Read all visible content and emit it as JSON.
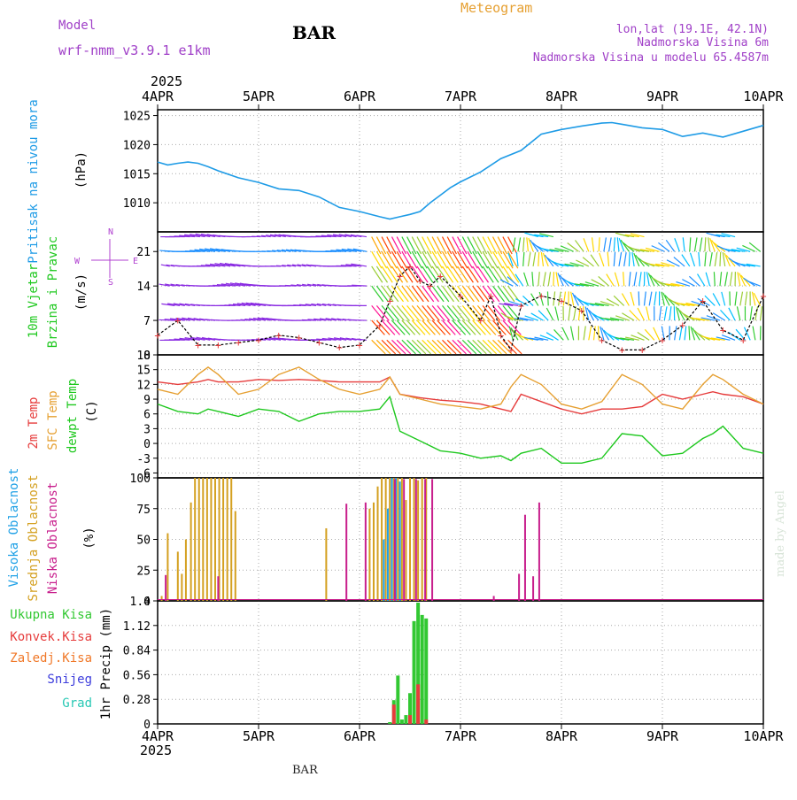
{
  "header": {
    "model_label": "Model",
    "model_name": "wrf-nmm_v3.9.1  e1km",
    "title": "BAR",
    "meteogram_label": "Meteogram",
    "lonlat": "lon,lat (19.1E, 42.1N)",
    "elevation": "Nadmorska Visina 6m",
    "model_elevation": "Nadmorska Visina u modelu 65.4587m",
    "year": "2025",
    "footer_title": "BAR",
    "credit": "made by Angel"
  },
  "colors": {
    "pressure": "#1e9be6",
    "temp2m": "#e63c3c",
    "sfc_temp": "#e6a032",
    "dewpoint": "#1ec81e",
    "high_cloud": "#1ea0e6",
    "mid_cloud": "#d4a020",
    "low_cloud": "#c81e8c",
    "total_precip": "#32c832",
    "conv_precip": "#e63c3c",
    "frozen_precip": "#f07828",
    "snow": "#3c3cdc",
    "hail": "#28c8b4",
    "model_text": "#a040c8",
    "meteogram_text": "#e6a032"
  },
  "x_axis": {
    "ticks": [
      "4APR",
      "5APR",
      "6APR",
      "7APR",
      "8APR",
      "9APR",
      "10APR"
    ],
    "top_year": "2025",
    "bottom_year": "2025"
  },
  "chart_data": [
    {
      "type": "line",
      "panel": "pressure",
      "ylabel_title": "Pritisak na nivou mora",
      "ylabel_unit": "(hPa)",
      "ylim": [
        1005,
        1026
      ],
      "yticks": [
        "1010",
        "1015",
        "1020",
        "1025"
      ],
      "grid": true,
      "x_days": [
        0,
        0.1,
        0.2,
        0.3,
        0.4,
        0.5,
        0.6,
        0.8,
        1.0,
        1.2,
        1.4,
        1.6,
        1.8,
        2.0,
        2.2,
        2.3,
        2.4,
        2.5,
        2.6,
        2.7,
        2.8,
        2.9,
        3.0,
        3.2,
        3.4,
        3.6,
        3.8,
        4.0,
        4.2,
        4.4,
        4.5,
        4.6,
        4.8,
        5.0,
        5.2,
        5.4,
        5.6,
        5.8,
        6.0
      ],
      "series": [
        {
          "values": [
            1017,
            1016.5,
            1016.8,
            1017,
            1016.8,
            1016.2,
            1015.5,
            1014.3,
            1013.5,
            1012.4,
            1012.1,
            1011.0,
            1009.2,
            1008.5,
            1007.6,
            1007.2,
            1007.6,
            1008.0,
            1008.5,
            1010.0,
            1011.3,
            1012.6,
            1013.6,
            1015.3,
            1017.6,
            1019.0,
            1021.8,
            1022.6,
            1023.2,
            1023.7,
            1023.8,
            1023.5,
            1022.9,
            1022.6,
            1021.4,
            1022.0,
            1021.3,
            1022.3,
            1023.3
          ]
        }
      ]
    },
    {
      "type": "line",
      "panel": "wind",
      "ylabel_title_1": "10m Vjetar",
      "ylabel_title_2": "Brzina i Pravac",
      "ylabel_unit": "(m/s)",
      "compass": {
        "n": "N",
        "s": "S",
        "e": "E",
        "w": "W"
      },
      "ylim": [
        0,
        25
      ],
      "yticks": [
        "0",
        "7",
        "14",
        "21"
      ],
      "grid": true,
      "x_days": [
        0,
        0.2,
        0.4,
        0.6,
        0.8,
        1.0,
        1.2,
        1.4,
        1.6,
        1.8,
        2.0,
        2.2,
        2.3,
        2.4,
        2.5,
        2.6,
        2.7,
        2.8,
        3.0,
        3.2,
        3.3,
        3.4,
        3.5,
        3.6,
        3.8,
        4.0,
        4.2,
        4.4,
        4.6,
        4.8,
        5.0,
        5.2,
        5.4,
        5.6,
        5.8,
        6.0
      ],
      "series": [
        {
          "name": "speed",
          "values": [
            4,
            7,
            2,
            2,
            2.5,
            3,
            4,
            3.5,
            2.5,
            1.5,
            2,
            6,
            11,
            16,
            18,
            15,
            14,
            16,
            12,
            7,
            12,
            4,
            1,
            10,
            12,
            11,
            9,
            3,
            1,
            1,
            3,
            6,
            11,
            5,
            3,
            12
          ]
        }
      ],
      "barb_rows_ms": [
        3,
        7,
        10,
        14,
        18,
        21,
        24
      ],
      "barb_color_scale": [
        "#8a2be2",
        "#1e90ff",
        "#00bfff",
        "#32cd32",
        "#9acd32",
        "#ffd700",
        "#ffa500",
        "#ff4500",
        "#ff1493"
      ]
    },
    {
      "type": "line",
      "panel": "temperature",
      "ylabel_2m": "2m Temp",
      "ylabel_sfc": "SFC Temp",
      "ylabel_dew": "dewpt Temp",
      "ylabel_unit": "(C)",
      "ylim": [
        -7,
        18
      ],
      "yticks": [
        "-6",
        "-3",
        "0",
        "3",
        "6",
        "9",
        "12",
        "15",
        "18"
      ],
      "grid": true,
      "x_days": [
        0,
        0.2,
        0.4,
        0.5,
        0.6,
        0.8,
        1.0,
        1.2,
        1.4,
        1.6,
        1.8,
        2.0,
        2.2,
        2.3,
        2.4,
        2.6,
        2.8,
        3.0,
        3.2,
        3.4,
        3.5,
        3.6,
        3.8,
        4.0,
        4.2,
        4.4,
        4.6,
        4.8,
        5.0,
        5.2,
        5.4,
        5.5,
        5.6,
        5.8,
        6.0
      ],
      "series": [
        {
          "name": "2m Temp",
          "values": [
            12.5,
            12,
            12.5,
            13,
            12.5,
            12.5,
            13,
            12.8,
            13,
            12.8,
            12.5,
            12.5,
            12.5,
            13.5,
            10,
            9.3,
            8.8,
            8.5,
            8,
            7,
            6.5,
            10,
            8.5,
            7,
            6,
            7,
            7,
            7.5,
            10,
            9,
            10,
            10.5,
            10,
            9.5,
            8
          ]
        },
        {
          "name": "SFC Temp",
          "values": [
            11,
            10,
            14,
            15.5,
            14,
            10,
            11,
            14,
            15.5,
            13,
            11,
            10,
            11,
            13.5,
            10,
            9,
            8,
            7.5,
            7,
            8,
            11.5,
            14,
            12,
            8,
            7,
            8.5,
            14,
            12,
            8,
            7,
            12,
            14,
            13,
            10,
            8
          ]
        },
        {
          "name": "dewpt Temp",
          "values": [
            8,
            6.5,
            6,
            7,
            6.5,
            5.5,
            7,
            6.5,
            4.5,
            6,
            6.5,
            6.5,
            7,
            9.5,
            2.5,
            0.5,
            -1.5,
            -2,
            -3,
            -2.5,
            -3.5,
            -2,
            -1,
            -4,
            -4,
            -3,
            2,
            1.5,
            -2.5,
            -2,
            1,
            2,
            3.5,
            -1,
            -2
          ]
        }
      ]
    },
    {
      "type": "bar",
      "panel": "clouds",
      "ylabel_high": "Visoka Oblacnost",
      "ylabel_mid": "Srednja Oblacnost",
      "ylabel_low": "Niska Oblacnost",
      "ylabel_unit": "(%)",
      "ylim": [
        0,
        100
      ],
      "yticks": [
        "0",
        "25",
        "50",
        "75",
        "100"
      ],
      "grid": true,
      "series": [
        {
          "name": "Srednja Oblacnost",
          "x_days": [
            0.04,
            0.1,
            0.2,
            0.24,
            0.28,
            0.33,
            0.37,
            0.41,
            0.45,
            0.49,
            0.53,
            0.57,
            0.61,
            0.65,
            0.69,
            0.73,
            0.77,
            0.81,
            1.67,
            2.1,
            2.14,
            2.18,
            2.22,
            2.26,
            2.3,
            2.34,
            2.38,
            2.42,
            2.46,
            2.5,
            2.54,
            2.58,
            2.62,
            2.66
          ],
          "values": [
            4,
            55,
            40,
            22,
            50,
            80,
            100,
            100,
            100,
            100,
            100,
            100,
            100,
            100,
            100,
            100,
            73,
            0,
            59,
            75,
            80,
            93,
            100,
            100,
            100,
            100,
            100,
            100,
            82,
            100,
            100,
            98,
            100,
            100
          ]
        },
        {
          "name": "Visoka Oblacnost",
          "x_days": [
            2.24,
            2.28,
            2.32,
            2.36,
            2.4
          ],
          "values": [
            50,
            75,
            100,
            100,
            97
          ]
        },
        {
          "name": "Niska Oblacnost",
          "x_days": [
            0.08,
            0.6,
            1.87,
            2.06,
            2.35,
            2.44,
            2.56,
            2.65,
            2.72,
            3.33,
            3.58,
            3.64,
            3.72,
            3.78
          ],
          "values": [
            21,
            20,
            79,
            80,
            99,
            99,
            99,
            99,
            99,
            4,
            22,
            70,
            20,
            80
          ]
        }
      ]
    },
    {
      "type": "bar",
      "panel": "precip",
      "ylabel_total": "Ukupna Kisa",
      "ylabel_conv": "Konvek.Kisa",
      "ylabel_frozen": "Zaledj.Kisa",
      "ylabel_snow": "Snijeg",
      "ylabel_hail": "Grad",
      "ylabel_unit": "1hr Precip (mm)",
      "ylim": [
        0,
        1.4
      ],
      "yticks": [
        "0",
        "0.28",
        "0.56",
        "0.84",
        "1.12",
        "1.4"
      ],
      "grid": true,
      "series": [
        {
          "name": "Ukupna Kisa",
          "x_days": [
            2.3,
            2.34,
            2.38,
            2.42,
            2.46,
            2.5,
            2.54,
            2.58,
            2.62,
            2.66
          ],
          "values": [
            0.02,
            0.27,
            0.55,
            0.05,
            0.1,
            0.35,
            1.17,
            1.38,
            1.24,
            1.2
          ]
        },
        {
          "name": "Konvek.Kisa",
          "x_days": [
            2.34,
            2.5,
            2.58,
            2.66
          ],
          "values": [
            0.22,
            0.1,
            0.45,
            0.05
          ]
        }
      ]
    }
  ]
}
